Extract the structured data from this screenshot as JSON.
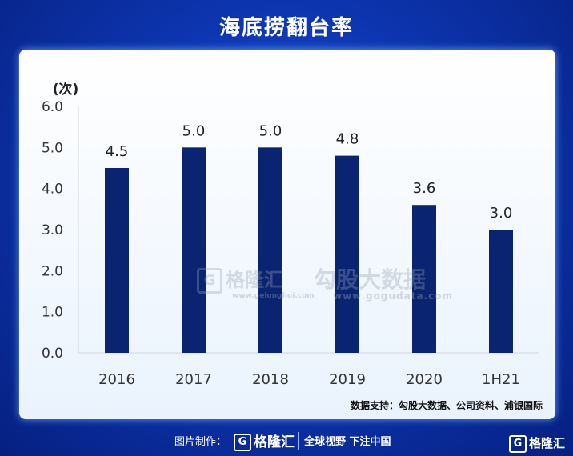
{
  "title": "海底捞翻台率",
  "chart_data": {
    "type": "bar",
    "title": "海底捞翻台率",
    "ylabel": "(次)",
    "xlabel": "",
    "categories": [
      "2016",
      "2017",
      "2018",
      "2019",
      "2020",
      "1H21"
    ],
    "values": [
      4.5,
      5.0,
      5.0,
      4.8,
      3.6,
      3.0
    ],
    "data_labels": [
      "4.5",
      "5.0",
      "5.0",
      "4.8",
      "3.6",
      "3.0"
    ],
    "ylim": [
      0,
      6
    ],
    "yticks": [
      "0.0",
      "1.0",
      "2.0",
      "3.0",
      "4.0",
      "5.0",
      "6.0"
    ],
    "bar_color": "#0a2472",
    "grid": false,
    "legend": "none"
  },
  "source": "数据支持：勾股大数据、公司资料、浦银国际",
  "watermarks": {
    "gelonghui": "格隆汇",
    "gelonghui_url": "www.gelonghui.com",
    "gouhu": "勾股大数据",
    "gouhu_url": "www.gogudata.com"
  },
  "footer": {
    "made_by": "图片制作：",
    "logo": "格隆汇",
    "slogan": "全球视野 下注中国",
    "corner_logo": "格隆汇"
  }
}
